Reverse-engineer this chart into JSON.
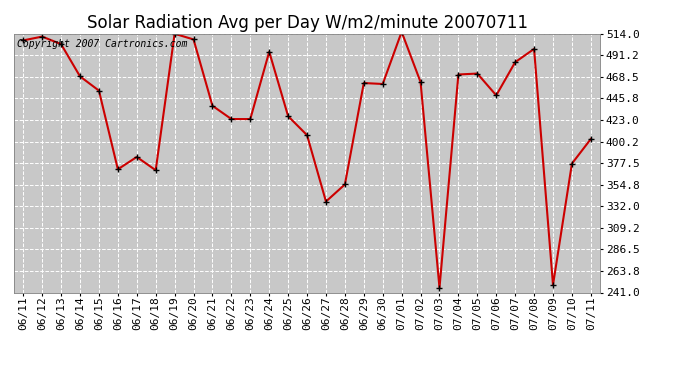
{
  "title": "Solar Radiation Avg per Day W/m2/minute 20070711",
  "copyright_text": "Copyright 2007 Cartronics.com",
  "dates": [
    "06/11",
    "06/12",
    "06/13",
    "06/14",
    "06/15",
    "06/16",
    "06/17",
    "06/18",
    "06/19",
    "06/20",
    "06/21",
    "06/22",
    "06/23",
    "06/24",
    "06/25",
    "06/26",
    "06/27",
    "06/28",
    "06/29",
    "06/30",
    "07/01",
    "07/02",
    "07/03",
    "07/04",
    "07/05",
    "07/06",
    "07/07",
    "07/08",
    "07/09",
    "07/10",
    "07/11"
  ],
  "values": [
    507,
    511,
    503,
    469,
    454,
    371,
    384,
    370,
    514,
    508,
    438,
    424,
    424,
    495,
    427,
    407,
    337,
    355,
    462,
    461,
    516,
    463,
    246,
    471,
    472,
    449,
    484,
    498,
    249,
    377,
    403
  ],
  "line_color": "#cc0000",
  "marker_color": "#000000",
  "bg_color": "#ffffff",
  "plot_bg_color": "#c8c8c8",
  "grid_color": "#ffffff",
  "ytick_labels": [
    "241.0",
    "263.8",
    "286.5",
    "309.2",
    "332.0",
    "354.8",
    "377.5",
    "400.2",
    "423.0",
    "445.8",
    "468.5",
    "491.2",
    "514.0"
  ],
  "ytick_values": [
    241.0,
    263.8,
    286.5,
    309.2,
    332.0,
    354.8,
    377.5,
    400.2,
    423.0,
    445.8,
    468.5,
    491.2,
    514.0
  ],
  "ymin": 241.0,
  "ymax": 514.0,
  "title_fontsize": 12,
  "tick_fontsize": 8,
  "copyright_fontsize": 7
}
